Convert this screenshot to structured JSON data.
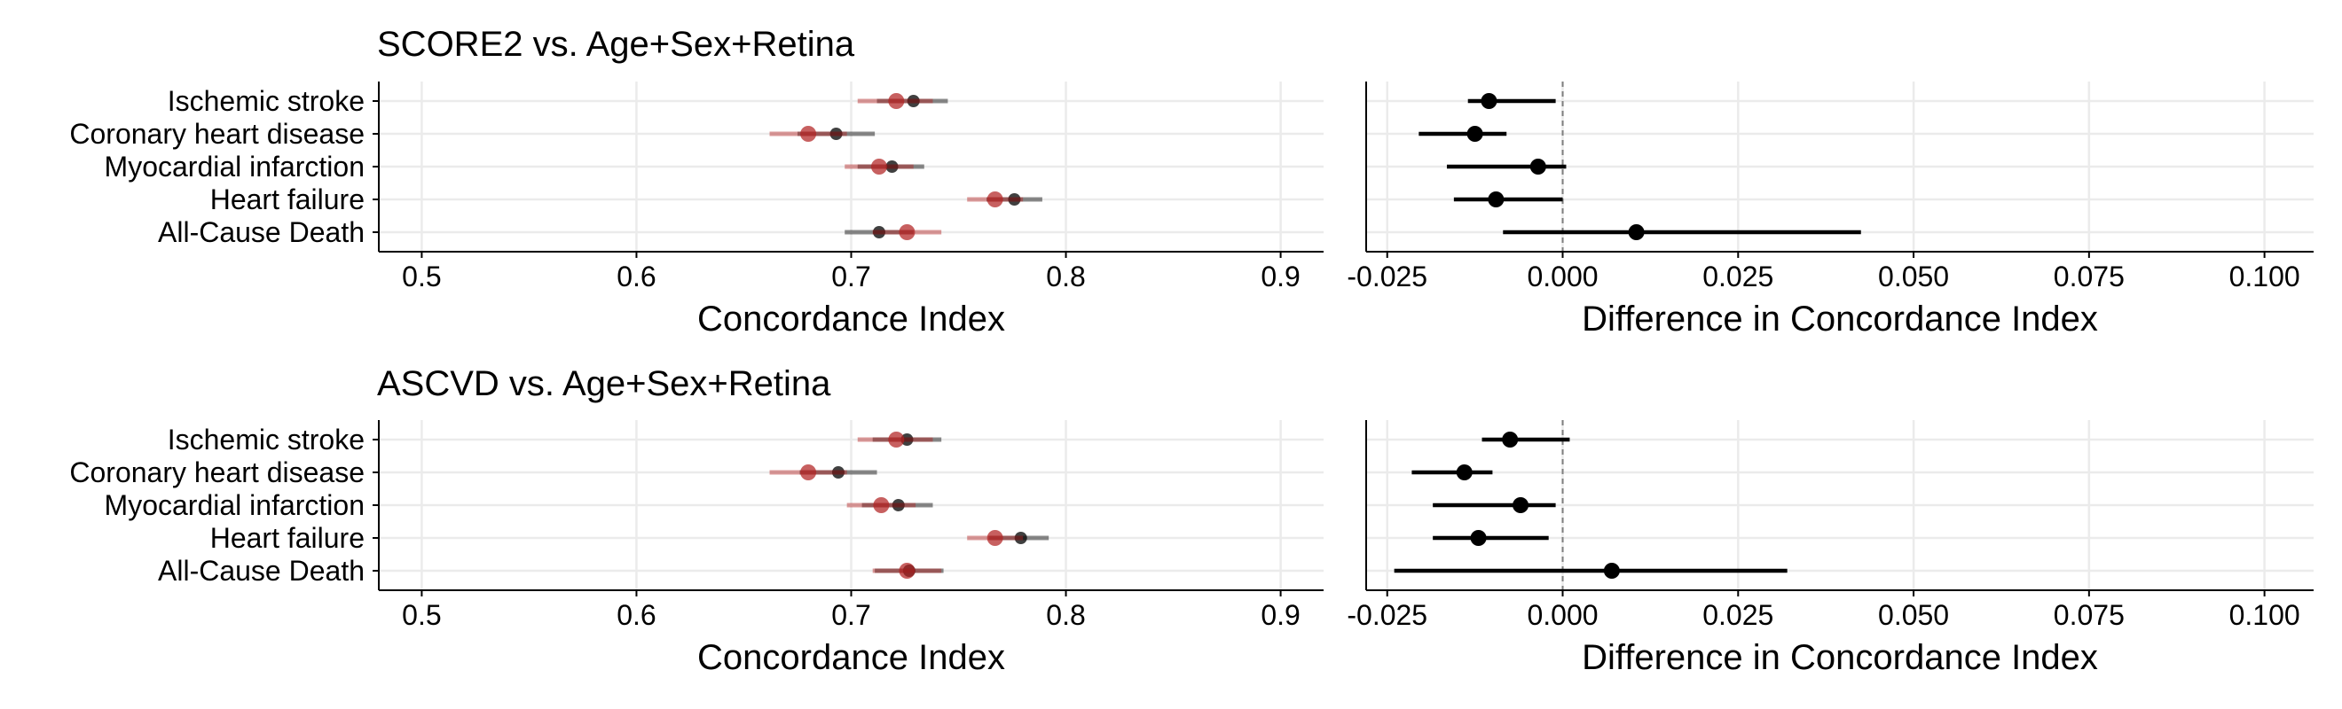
{
  "figure": {
    "colors": {
      "model_a": "#000000",
      "model_b": "#B22222",
      "grid": "#EBEBEB",
      "axis": "#000000",
      "zero_line": "#7F7F7F"
    }
  },
  "chart_data": [
    {
      "type": "scatter",
      "subtype": "forest-plot-with-error-bars",
      "title": "SCORE2 vs. Age+Sex+Retina",
      "xlabel": "Concordance Index",
      "ylabel": "",
      "xlim": [
        0.48,
        0.92
      ],
      "xticks": [
        0.5,
        0.6,
        0.7,
        0.8,
        0.9
      ],
      "xtick_labels": [
        "0.5",
        "0.6",
        "0.7",
        "0.8",
        "0.9"
      ],
      "grid": true,
      "categories": [
        "Ischemic stroke",
        "Coronary heart disease",
        "Myocardial infarction",
        "Heart failure",
        "All-Cause Death"
      ],
      "series": [
        {
          "color": "#000000",
          "values": [
            0.729,
            0.693,
            0.719,
            0.776,
            0.713
          ],
          "lower": [
            0.712,
            0.675,
            0.703,
            0.763,
            0.697
          ],
          "upper": [
            0.745,
            0.711,
            0.734,
            0.789,
            0.729
          ]
        },
        {
          "color": "#B22222",
          "values": [
            0.721,
            0.68,
            0.713,
            0.767,
            0.726
          ],
          "lower": [
            0.703,
            0.662,
            0.697,
            0.754,
            0.71
          ],
          "upper": [
            0.738,
            0.698,
            0.729,
            0.78,
            0.742
          ]
        }
      ]
    },
    {
      "type": "scatter",
      "subtype": "forest-plot-with-error-bars",
      "title": "",
      "xlabel": "Difference in Concordance Index",
      "ylabel": "",
      "xlim": [
        -0.028,
        0.107
      ],
      "xticks": [
        -0.025,
        0.0,
        0.025,
        0.05,
        0.075,
        0.1
      ],
      "xtick_labels": [
        "-0.025",
        "0.000",
        "0.025",
        "0.050",
        "0.075",
        "0.100"
      ],
      "reference_line": 0,
      "grid": true,
      "categories": [
        "Ischemic stroke",
        "Coronary heart disease",
        "Myocardial infarction",
        "Heart failure",
        "All-Cause Death"
      ],
      "series": [
        {
          "color": "#000000",
          "values": [
            -0.0105,
            -0.0125,
            -0.0035,
            -0.0095,
            0.0105
          ],
          "lower": [
            -0.0135,
            -0.0205,
            -0.0165,
            -0.0155,
            -0.0085
          ],
          "upper": [
            -0.001,
            -0.008,
            0.0005,
            0.0,
            0.0425
          ]
        }
      ]
    },
    {
      "type": "scatter",
      "subtype": "forest-plot-with-error-bars",
      "title": "ASCVD vs. Age+Sex+Retina",
      "xlabel": "Concordance Index",
      "ylabel": "",
      "xlim": [
        0.48,
        0.92
      ],
      "xticks": [
        0.5,
        0.6,
        0.7,
        0.8,
        0.9
      ],
      "xtick_labels": [
        "0.5",
        "0.6",
        "0.7",
        "0.8",
        "0.9"
      ],
      "grid": true,
      "categories": [
        "Ischemic stroke",
        "Coronary heart disease",
        "Myocardial infarction",
        "Heart failure",
        "All-Cause Death"
      ],
      "series": [
        {
          "color": "#000000",
          "values": [
            0.726,
            0.694,
            0.722,
            0.779,
            0.727
          ],
          "lower": [
            0.71,
            0.676,
            0.705,
            0.764,
            0.711
          ],
          "upper": [
            0.742,
            0.712,
            0.738,
            0.792,
            0.743
          ]
        },
        {
          "color": "#B22222",
          "values": [
            0.721,
            0.68,
            0.714,
            0.767,
            0.726
          ],
          "lower": [
            0.703,
            0.662,
            0.698,
            0.754,
            0.71
          ],
          "upper": [
            0.738,
            0.698,
            0.73,
            0.78,
            0.742
          ]
        }
      ]
    },
    {
      "type": "scatter",
      "subtype": "forest-plot-with-error-bars",
      "title": "",
      "xlabel": "Difference in Concordance Index",
      "ylabel": "",
      "xlim": [
        -0.028,
        0.107
      ],
      "xticks": [
        -0.025,
        0.0,
        0.025,
        0.05,
        0.075,
        0.1
      ],
      "xtick_labels": [
        "-0.025",
        "0.000",
        "0.025",
        "0.050",
        "0.075",
        "0.100"
      ],
      "reference_line": 0,
      "grid": true,
      "categories": [
        "Ischemic stroke",
        "Coronary heart disease",
        "Myocardial infarction",
        "Heart failure",
        "All-Cause Death"
      ],
      "series": [
        {
          "color": "#000000",
          "values": [
            -0.0075,
            -0.014,
            -0.006,
            -0.012,
            0.007
          ],
          "lower": [
            -0.0115,
            -0.0215,
            -0.0185,
            -0.0185,
            -0.024
          ],
          "upper": [
            0.001,
            -0.01,
            -0.001,
            -0.002,
            0.032
          ]
        }
      ]
    }
  ]
}
